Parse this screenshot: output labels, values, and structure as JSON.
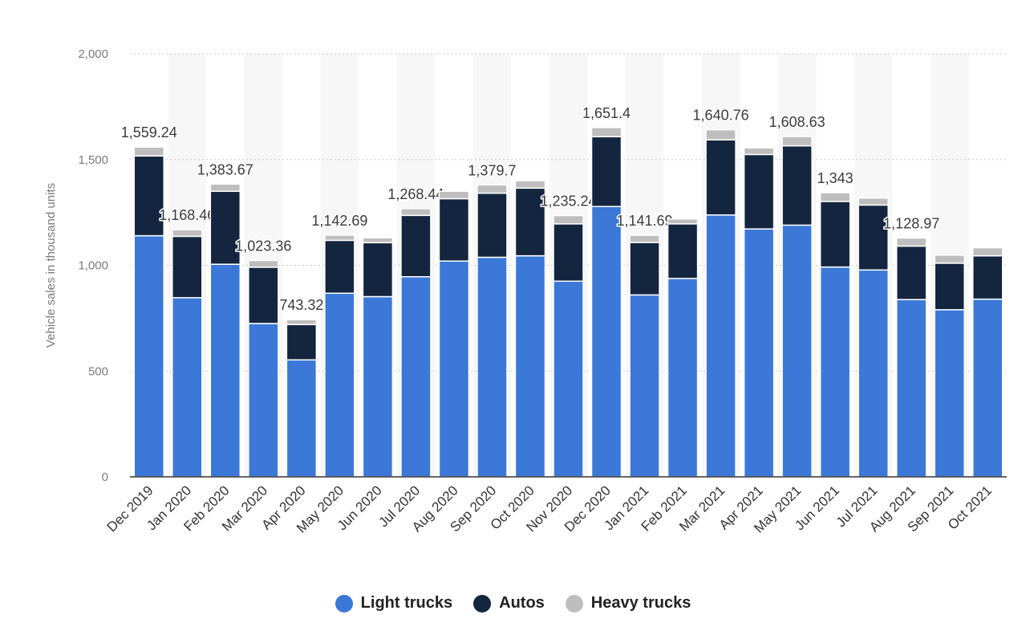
{
  "chart_data": {
    "type": "bar",
    "stacked": true,
    "title": "",
    "xlabel": "",
    "ylabel": "Vehicle sales in thousand units",
    "ylim": [
      0,
      2000
    ],
    "yticks": [
      0,
      500,
      1000,
      1500,
      2000
    ],
    "ytick_labels": [
      "0",
      "500",
      "1,000",
      "1,500",
      "2,000"
    ],
    "grid": true,
    "legend_position": "bottom-center",
    "categories": [
      "Dec 2019",
      "Jan 2020",
      "Feb 2020",
      "Mar 2020",
      "Apr 2020",
      "May 2020",
      "Jun 2020",
      "Jul 2020",
      "Aug 2020",
      "Sep 2020",
      "Oct 2020",
      "Nov 2020",
      "Dec 2020",
      "Jan 2021",
      "Feb 2021",
      "Mar 2021",
      "Apr 2021",
      "May 2021",
      "Jun 2021",
      "Jul 2021",
      "Aug 2021",
      "Sep 2021",
      "Oct 2021"
    ],
    "series": [
      {
        "name": "Light trucks",
        "color": "#3b78d8",
        "values": [
          1140,
          847,
          1005,
          725,
          553,
          868,
          852,
          946,
          1020,
          1038,
          1045,
          925,
          1278,
          860,
          938,
          1238,
          1172,
          1190,
          992,
          978,
          838,
          790,
          840
        ]
      },
      {
        "name": "Autos",
        "color": "#14263f",
        "values": [
          377,
          290,
          345,
          266,
          167,
          250,
          255,
          290,
          295,
          303,
          320,
          271,
          330,
          248,
          258,
          355,
          352,
          375,
          310,
          307,
          253,
          220,
          205
        ]
      },
      {
        "name": "Heavy trucks",
        "color": "#bebebe",
        "values": [
          42,
          31,
          34,
          32,
          23,
          25,
          23,
          32,
          35,
          39,
          35,
          39,
          43,
          34,
          23,
          48,
          31,
          44,
          41,
          33,
          38,
          38,
          38
        ]
      }
    ],
    "total_labels": [
      "1,559.24",
      "1,168.46",
      "1,383.67",
      "1,023.36",
      "743.32",
      "1,142.69",
      "",
      "1,268.44",
      "",
      "1,379.7",
      "",
      "1,235.24",
      "1,651.4",
      "1,141.69",
      "",
      "1,640.76",
      "",
      "1,608.63",
      "1,343",
      "",
      "1,128.97",
      "",
      ""
    ]
  },
  "legend": {
    "items": [
      {
        "label": "Light trucks",
        "color": "#3b78d8"
      },
      {
        "label": "Autos",
        "color": "#14263f"
      },
      {
        "label": "Heavy trucks",
        "color": "#bebebe"
      }
    ]
  }
}
